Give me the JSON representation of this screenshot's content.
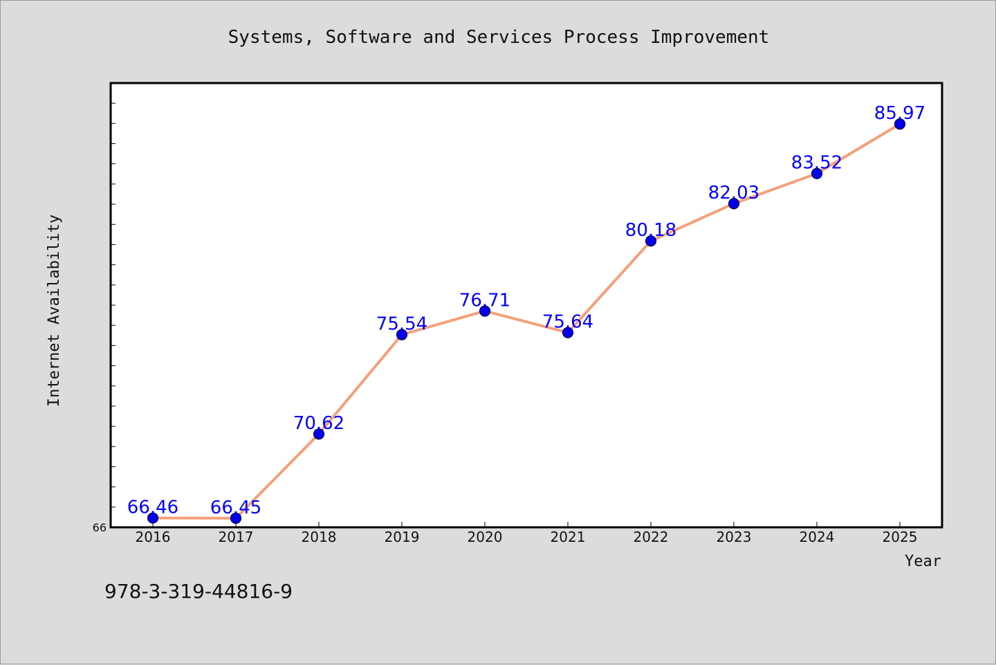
{
  "chart_data": {
    "type": "line",
    "title": "Systems, Software and Services Process Improvement",
    "xlabel": "Year",
    "ylabel": "Internet Availability",
    "categories": [
      "2016",
      "2017",
      "2018",
      "2019",
      "2020",
      "2021",
      "2022",
      "2023",
      "2024",
      "2025"
    ],
    "series": [
      {
        "values": [
          66.46,
          66.45,
          70.62,
          75.54,
          76.71,
          75.64,
          80.18,
          82.03,
          83.52,
          85.97
        ],
        "labels": [
          "66.46",
          "66.45",
          "70.62",
          "75.54",
          "76.71",
          "75.64",
          "80.18",
          "82.03",
          "83.52",
          "85.97"
        ]
      }
    ],
    "ylim": [
      66,
      88
    ],
    "yticks": [
      66
    ],
    "grid": false,
    "legend": "none",
    "colors": {
      "line": "#f4a07a",
      "marker": "#0000ee",
      "label": "#0000ff",
      "background": "#dcdcdc",
      "plot_bg": "#ffffff"
    }
  },
  "footer": {
    "isbn": "978-3-319-44816-9"
  }
}
